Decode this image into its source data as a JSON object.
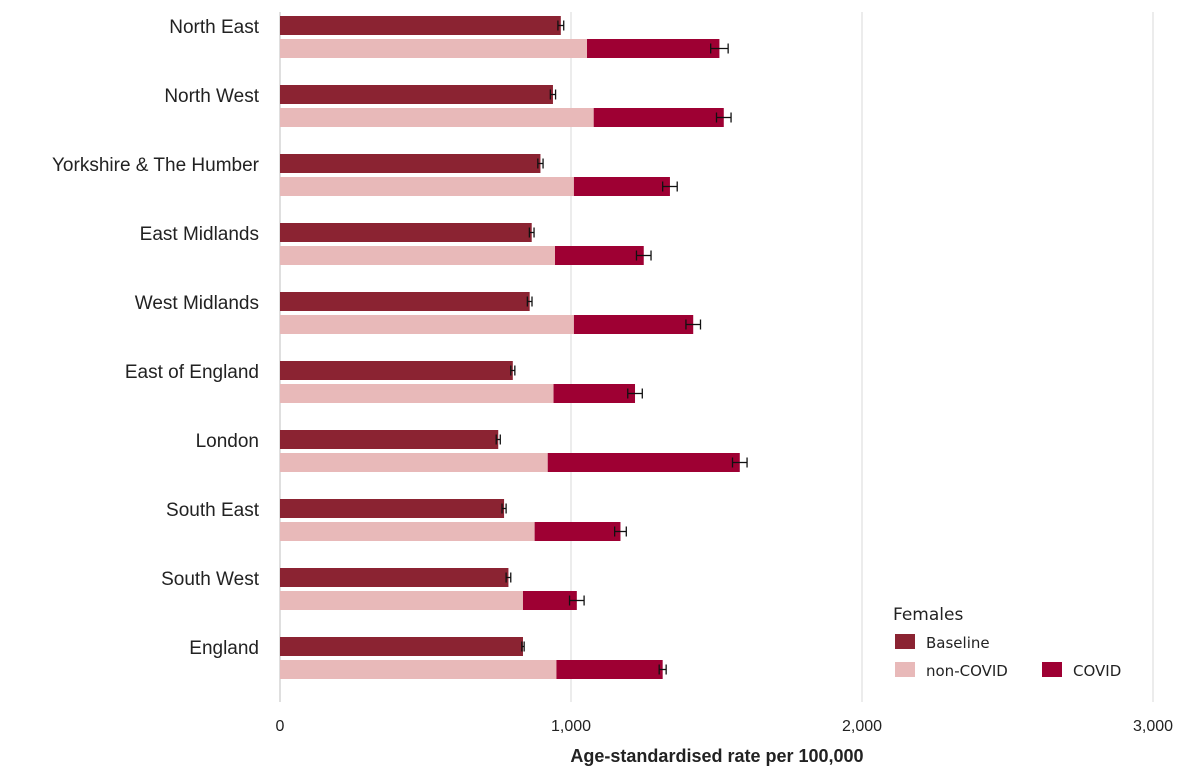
{
  "chart_data": {
    "type": "bar",
    "orientation": "horizontal",
    "xlabel": "Age-standardised rate per 100,000",
    "xlim": [
      0,
      3000
    ],
    "xticks": [
      0,
      1000,
      2000,
      3000
    ],
    "xtick_labels": [
      "0",
      "1,000",
      "2,000",
      "3,000"
    ],
    "grid": true,
    "categories": [
      "North East",
      "North West",
      "Yorkshire & The Humber",
      "East Midlands",
      "West Midlands",
      "East of England",
      "London",
      "South East",
      "South West",
      "England"
    ],
    "series": [
      {
        "name": "Baseline",
        "color": "#8b2332",
        "values": [
          965,
          938,
          895,
          865,
          858,
          800,
          750,
          770,
          785,
          835
        ],
        "error": [
          10,
          9,
          9,
          8,
          8,
          7,
          7,
          7,
          8,
          4
        ]
      },
      {
        "name": "non-COVID",
        "color": "#e8b9b9",
        "stack": "observed",
        "values": [
          1055,
          1078,
          1010,
          945,
          1010,
          940,
          920,
          875,
          835,
          950
        ]
      },
      {
        "name": "COVID",
        "color": "#9e0033",
        "stack": "observed",
        "values": [
          455,
          447,
          330,
          305,
          410,
          280,
          660,
          295,
          185,
          365
        ],
        "error_total": [
          30,
          25,
          25,
          25,
          25,
          25,
          25,
          20,
          25,
          12
        ]
      }
    ],
    "legend": {
      "title": "Females",
      "position": "bottom-right"
    }
  }
}
